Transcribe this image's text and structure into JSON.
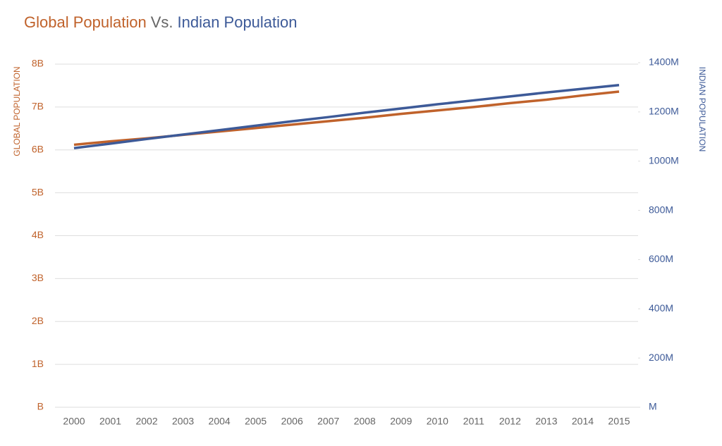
{
  "chart_data": {
    "type": "line",
    "title_parts": [
      {
        "text": "Global Population",
        "color": "#c0622b"
      },
      {
        "text": "Vs.",
        "color": "#666666"
      },
      {
        "text": "Indian Population",
        "color": "#3d5a98"
      }
    ],
    "ylabel": "GLOBAL POPULATION",
    "y2label": "INDIAN POPULATION",
    "categories": [
      "2000",
      "2001",
      "2002",
      "2003",
      "2004",
      "2005",
      "2006",
      "2007",
      "2008",
      "2009",
      "2010",
      "2011",
      "2012",
      "2013",
      "2014",
      "2015"
    ],
    "series": [
      {
        "name": "Global Population",
        "color": "#c0622b",
        "axis": "y",
        "values": [
          6.12,
          6.2,
          6.27,
          6.35,
          6.43,
          6.51,
          6.59,
          6.67,
          6.75,
          6.84,
          6.92,
          7.0,
          7.09,
          7.17,
          7.27,
          7.36
        ]
      },
      {
        "name": "Indian Population",
        "color": "#3d5a98",
        "axis": "y2",
        "values": [
          1053,
          1071,
          1090,
          1108,
          1126,
          1144,
          1162,
          1179,
          1197,
          1214,
          1231,
          1247,
          1263,
          1279,
          1294,
          1309
        ]
      }
    ],
    "ylim": [
      0,
      8
    ],
    "yticks": [
      {
        "value": 0,
        "label": "B"
      },
      {
        "value": 1,
        "label": "1B"
      },
      {
        "value": 2,
        "label": "2B"
      },
      {
        "value": 3,
        "label": "3B"
      },
      {
        "value": 4,
        "label": "4B"
      },
      {
        "value": 5,
        "label": "5B"
      },
      {
        "value": 6,
        "label": "6B"
      },
      {
        "value": 7,
        "label": "7B"
      },
      {
        "value": 8,
        "label": "8B"
      }
    ],
    "y2lim": [
      0,
      1400
    ],
    "y2ticks": [
      {
        "value": 0,
        "label": "M"
      },
      {
        "value": 200,
        "label": "200M"
      },
      {
        "value": 400,
        "label": "400M"
      },
      {
        "value": 600,
        "label": "600M"
      },
      {
        "value": 800,
        "label": "800M"
      },
      {
        "value": 1000,
        "label": "1000M"
      },
      {
        "value": 1200,
        "label": "1200M"
      },
      {
        "value": 1400,
        "label": "1400M"
      }
    ],
    "grid": true
  }
}
